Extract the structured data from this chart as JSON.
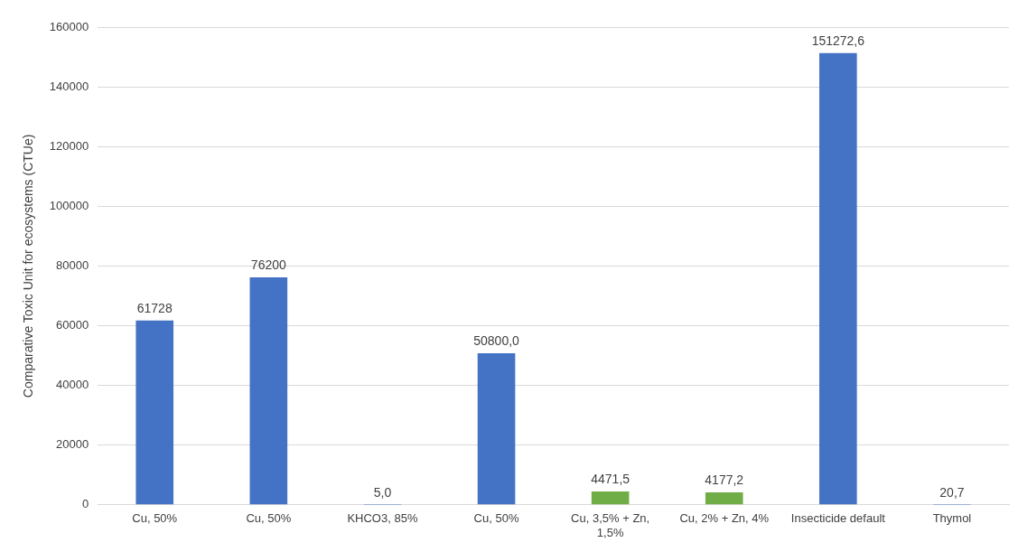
{
  "chart_data": {
    "type": "bar",
    "ylabel": "Comparative Toxic Unit for ecosystems (CTUe)",
    "categories": [
      "Cu, 50%",
      "Cu, 50%",
      "KHCO3, 85%",
      "Cu, 50%",
      "Cu, 3,5% + Zn, 1,5%",
      "Cu, 2% + Zn, 4%",
      "Insecticide default",
      "Thymol"
    ],
    "values": [
      61728,
      76200,
      5.0,
      50800.0,
      4471.5,
      4177.2,
      151272.6,
      20.7
    ],
    "value_labels": [
      "61728",
      "76200",
      "5,0",
      "50800,0",
      "4471,5",
      "4177,2",
      "151272,6",
      "20,7"
    ],
    "colors": [
      "#4472c4",
      "#4472c4",
      "#4472c4",
      "#4472c4",
      "#70ad47",
      "#70ad47",
      "#4472c4",
      "#4472c4"
    ],
    "ylim": [
      0,
      160000
    ],
    "yticks": [
      0,
      20000,
      40000,
      60000,
      80000,
      100000,
      120000,
      140000,
      160000
    ],
    "grid": "y",
    "legend": false
  }
}
